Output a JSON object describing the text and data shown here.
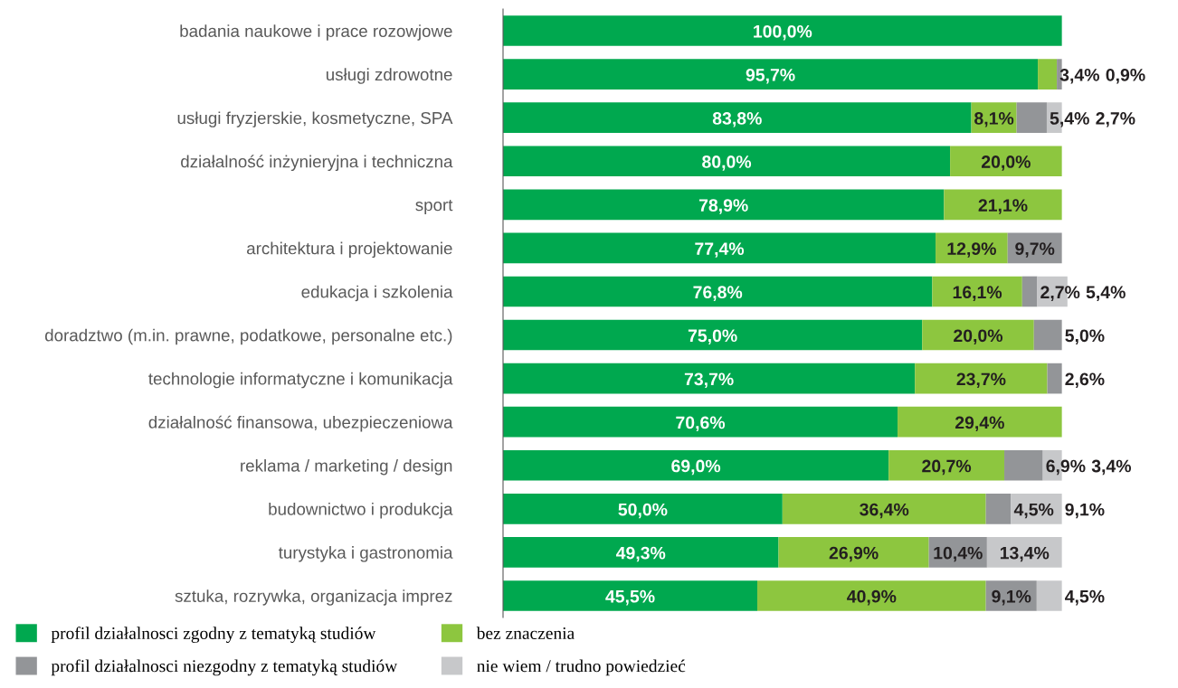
{
  "chart_data": {
    "type": "bar",
    "orientation": "horizontal",
    "legend": "bottom left",
    "grid": false,
    "tick_labels": "y",
    "categories": [
      "badania naukowe i prace rozowjowe",
      "usługi zdrowotne",
      "usługi fryzjerskie, kosmetyczne, SPA",
      "działalność inżynieryjna i techniczna",
      "sport",
      "architektura i projektowanie",
      "edukacja i szkolenia",
      "doradztwo (m.in. prawne, podatkowe, personalne etc.)",
      "technologie informatyczne i komunikacja",
      "działalność finansowa, ubezpieczeniowa",
      "reklama / marketing / design",
      "budownictwo i produkcja",
      "turystyka i gastronomia",
      "sztuka, rozrywka, organizacja imprez"
    ],
    "stacked": true,
    "series": [
      {
        "name": "profil działalnosci zgodny z tematyką studiów",
        "color": "#00a84f",
        "values": [
          100.0,
          95.7,
          83.8,
          80.0,
          78.9,
          77.4,
          76.8,
          75.0,
          73.7,
          70.6,
          69.0,
          50.0,
          49.3,
          45.5
        ],
        "value_labels": [
          "100,0%",
          "95,7%",
          "83,8%",
          "80,0%",
          "78,9%",
          "77,4%",
          "76,8%",
          "75,0%",
          "73,7%",
          "70,6%",
          "69,0%",
          "50,0%",
          "49,3%",
          "45,5%"
        ]
      },
      {
        "name": "bez znaczenia",
        "color": "#8dc63f",
        "values": [
          null,
          3.4,
          8.1,
          20.0,
          21.1,
          12.9,
          16.1,
          20.0,
          23.7,
          29.4,
          20.7,
          36.4,
          26.9,
          40.9
        ],
        "value_labels": [
          null,
          "3,4%",
          "8,1%",
          "20,0%",
          "21,1%",
          "12,9%",
          "16,1%",
          "20,0%",
          "23,7%",
          "29,4%",
          "20,7%",
          "36,4%",
          "26,9%",
          "40,9%"
        ]
      },
      {
        "name": "profil działalnosci niezgodny z tematyką studiów",
        "color": "#939598",
        "values": [
          null,
          0.9,
          5.4,
          null,
          null,
          9.7,
          2.7,
          5.0,
          2.6,
          null,
          6.9,
          4.5,
          10.4,
          9.1
        ],
        "value_labels": [
          null,
          "0,9%",
          "5,4%",
          null,
          null,
          "9,7%",
          "2,7%",
          "5,0%",
          "2,6%",
          null,
          "6,9%",
          "4,5%",
          "10,4%",
          "9,1%"
        ]
      },
      {
        "name": "nie wiem / trudno powiedzieć",
        "color": "#c7c8ca",
        "values": [
          null,
          null,
          2.7,
          null,
          null,
          null,
          5.4,
          null,
          null,
          null,
          3.4,
          9.1,
          13.4,
          4.5
        ],
        "value_labels": [
          null,
          null,
          "2,7%",
          null,
          null,
          null,
          "5,4%",
          null,
          null,
          null,
          "3,4%",
          "9,1%",
          "13,4%",
          "4,5%"
        ]
      }
    ]
  }
}
